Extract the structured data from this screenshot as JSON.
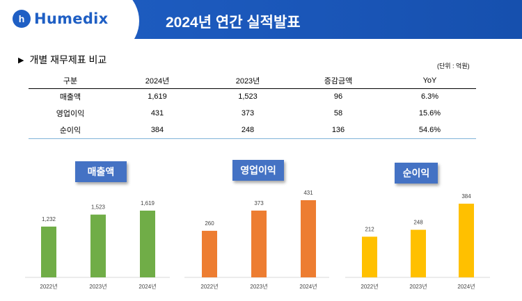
{
  "header": {
    "logo_mark": "h",
    "logo_text": "Humedix",
    "title": "2024년 연간 실적발표"
  },
  "section": {
    "marker": "▶",
    "title": "개별 재무제표 비교",
    "unit": "(단위 : 억원)"
  },
  "table": {
    "headers": [
      "구분",
      "2024년",
      "2023년",
      "증감금액",
      "YoY"
    ],
    "rows": [
      [
        "매출액",
        "1,619",
        "1,523",
        "96",
        "6.3%"
      ],
      [
        "영업이익",
        "431",
        "373",
        "58",
        "15.6%"
      ],
      [
        "순이익",
        "384",
        "248",
        "136",
        "54.6%"
      ]
    ]
  },
  "colors": {
    "header_blue": "#1f5fc4",
    "label_blue": "#4472c4",
    "green": "#70ad47",
    "orange": "#ed7d31",
    "yellow": "#ffc000"
  },
  "chart_data": [
    {
      "type": "bar",
      "title": "매출액",
      "categories": [
        "2022년",
        "2023년",
        "2024년"
      ],
      "values": [
        1232,
        1523,
        1619
      ],
      "labels": [
        "1,232",
        "1,523",
        "1,619"
      ],
      "color": "#70ad47"
    },
    {
      "type": "bar",
      "title": "영업이익",
      "categories": [
        "2022년",
        "2023년",
        "2024년"
      ],
      "values": [
        260,
        373,
        431
      ],
      "labels": [
        "260",
        "373",
        "431"
      ],
      "color": "#ed7d31"
    },
    {
      "type": "bar",
      "title": "순이익",
      "categories": [
        "2022년",
        "2023년",
        "2024년"
      ],
      "values": [
        212,
        248,
        384
      ],
      "labels": [
        "212",
        "248",
        "384"
      ],
      "color": "#ffc000"
    }
  ]
}
